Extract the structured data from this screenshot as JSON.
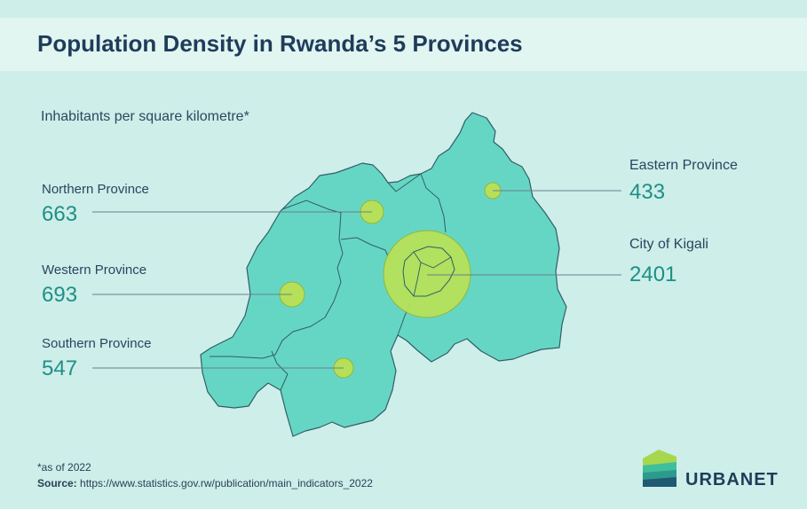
{
  "title": "Population Density in Rwanda’s 5 Provinces",
  "subtitle": "Inhabitants per square kilometre*",
  "provinces": [
    {
      "name": "Northern Province",
      "value": "663"
    },
    {
      "name": "Western Province",
      "value": "693"
    },
    {
      "name": "Southern Province",
      "value": "547"
    },
    {
      "name": "Eastern Province",
      "value": "433"
    },
    {
      "name": "City of Kigali",
      "value": "2401"
    }
  ],
  "footnote": "*as of 2022",
  "source": {
    "label": "Source:",
    "text": " https://www.statistics.gov.rw/publication/main_indicators_2022"
  },
  "brand": "URBANET",
  "colors": {
    "background": "#cdeee9",
    "title_bar": "#e1f5f1",
    "map_fill": "#66d6c4",
    "map_stroke": "#2f5f66",
    "marker_fill": "#b6e05a",
    "marker_stroke": "#8fb83a",
    "value_text": "#1f8f86",
    "title_text": "#1f3c5a"
  }
}
